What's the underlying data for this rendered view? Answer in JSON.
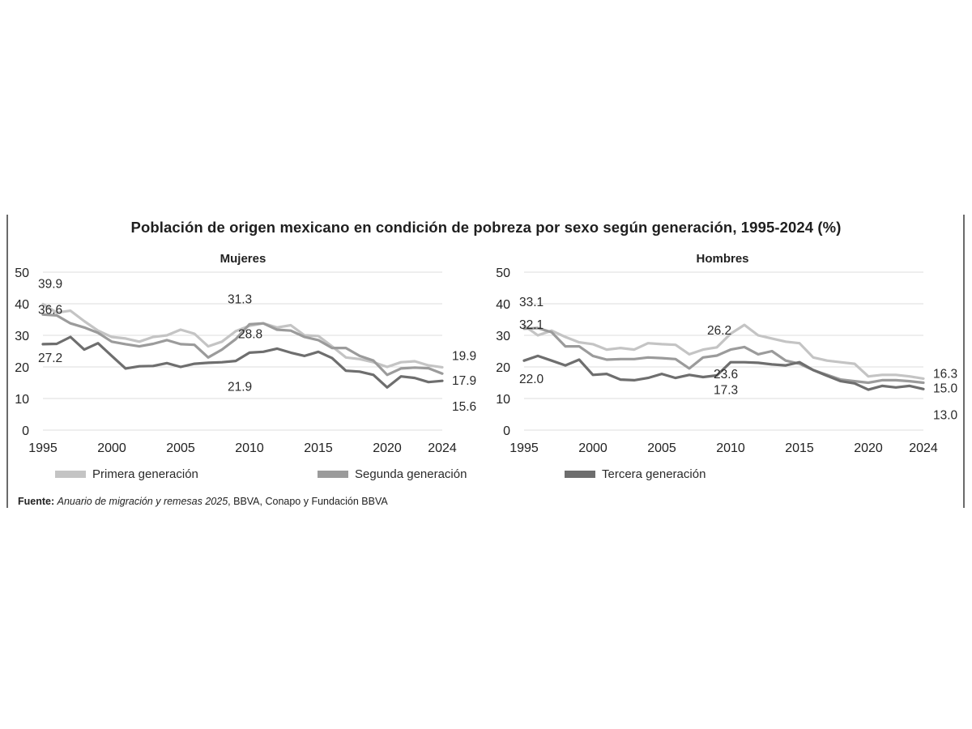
{
  "title": "Población de origen mexicano en condición de pobreza por sexo según generación, 1995-2024 (%)",
  "source": {
    "label": "Fuente:",
    "italic": "Anuario de migración y remesas 2025",
    "rest": ", BBVA, Conapo y Fundación BBVA"
  },
  "legend": [
    {
      "label": "Primera generación",
      "color": "#c4c4c4"
    },
    {
      "label": "Segunda generación",
      "color": "#9b9b9b"
    },
    {
      "label": "Tercera generación",
      "color": "#6e6e6e"
    }
  ],
  "chart_data": [
    {
      "type": "line",
      "title": "Mujeres",
      "x": [
        1995,
        1996,
        1997,
        1998,
        1999,
        2000,
        2001,
        2002,
        2003,
        2004,
        2005,
        2006,
        2007,
        2008,
        2009,
        2010,
        2011,
        2012,
        2013,
        2014,
        2015,
        2016,
        2017,
        2018,
        2019,
        2020,
        2021,
        2022,
        2023,
        2024
      ],
      "ylim": [
        0,
        50
      ],
      "yticks": [
        0,
        10,
        20,
        30,
        40,
        50
      ],
      "xtick_labels": [
        "1995",
        "2000",
        "2005",
        "2010",
        "2015",
        "2020",
        "2024"
      ],
      "series": [
        {
          "name": "Primera generación",
          "color": "#c4c4c4",
          "values": [
            39.9,
            37.2,
            37.8,
            34.5,
            31.5,
            29.5,
            29.0,
            28.0,
            29.5,
            30.0,
            31.8,
            30.5,
            26.5,
            28.0,
            31.3,
            33.0,
            33.8,
            32.5,
            33.2,
            30.0,
            29.8,
            26.5,
            23.0,
            22.5,
            21.5,
            20.0,
            21.5,
            21.8,
            20.5,
            19.9
          ]
        },
        {
          "name": "Segunda generación",
          "color": "#9b9b9b",
          "values": [
            36.6,
            36.3,
            33.8,
            32.5,
            30.8,
            28.0,
            27.2,
            26.5,
            27.3,
            28.5,
            27.2,
            27.0,
            23.0,
            25.5,
            28.8,
            33.5,
            33.8,
            31.8,
            31.5,
            29.5,
            28.5,
            26.0,
            26.0,
            23.5,
            22.0,
            17.5,
            19.5,
            19.8,
            19.6,
            17.9
          ]
        },
        {
          "name": "Tercera generación",
          "color": "#6e6e6e",
          "values": [
            27.2,
            27.3,
            29.5,
            25.5,
            27.5,
            23.5,
            19.5,
            20.2,
            20.3,
            21.2,
            20.0,
            21.0,
            21.3,
            21.5,
            21.9,
            24.5,
            24.8,
            25.8,
            24.5,
            23.5,
            24.8,
            22.8,
            18.8,
            18.5,
            17.5,
            13.5,
            17.0,
            16.5,
            15.2,
            15.6
          ]
        }
      ],
      "annotations": [
        "39.9",
        "36.6",
        "27.2",
        "31.3",
        "28.8",
        "21.9",
        "19.9",
        "17.9",
        "15.6"
      ]
    },
    {
      "type": "line",
      "title": "Hombres",
      "x": [
        1995,
        1996,
        1997,
        1998,
        1999,
        2000,
        2001,
        2002,
        2003,
        2004,
        2005,
        2006,
        2007,
        2008,
        2009,
        2010,
        2011,
        2012,
        2013,
        2014,
        2015,
        2016,
        2017,
        2018,
        2019,
        2020,
        2021,
        2022,
        2023,
        2024
      ],
      "ylim": [
        0,
        50
      ],
      "yticks": [
        0,
        10,
        20,
        30,
        40,
        50
      ],
      "xtick_labels": [
        "1995",
        "2000",
        "2005",
        "2010",
        "2015",
        "2020",
        "2024"
      ],
      "series": [
        {
          "name": "Primera generación",
          "color": "#c4c4c4",
          "values": [
            33.1,
            30.0,
            31.5,
            29.5,
            27.8,
            27.2,
            25.5,
            26.0,
            25.5,
            27.5,
            27.2,
            27.0,
            24.0,
            25.5,
            26.2,
            30.5,
            33.3,
            30.0,
            29.0,
            28.0,
            27.5,
            23.0,
            22.0,
            21.5,
            21.0,
            17.0,
            17.5,
            17.5,
            17.0,
            16.3
          ]
        },
        {
          "name": "Segunda generación",
          "color": "#9b9b9b",
          "values": [
            32.1,
            32.3,
            31.0,
            26.5,
            26.5,
            23.5,
            22.3,
            22.5,
            22.5,
            23.0,
            22.8,
            22.5,
            19.5,
            23.0,
            23.6,
            25.5,
            26.3,
            24.0,
            25.0,
            22.0,
            21.0,
            19.0,
            17.5,
            16.0,
            15.5,
            15.0,
            15.8,
            15.8,
            15.5,
            15.0
          ]
        },
        {
          "name": "Tercera generación",
          "color": "#6e6e6e",
          "values": [
            22.0,
            23.5,
            22.0,
            20.5,
            22.3,
            17.5,
            17.8,
            16.0,
            15.8,
            16.5,
            17.8,
            16.5,
            17.5,
            16.8,
            17.3,
            21.5,
            21.5,
            21.3,
            20.8,
            20.5,
            21.5,
            19.0,
            17.2,
            15.5,
            14.8,
            12.8,
            14.0,
            13.5,
            14.0,
            13.0
          ]
        }
      ],
      "annotations": [
        "33.1",
        "32.1",
        "22.0",
        "26.2",
        "23.6",
        "17.3",
        "16.3",
        "15.0",
        "13.0"
      ]
    }
  ]
}
